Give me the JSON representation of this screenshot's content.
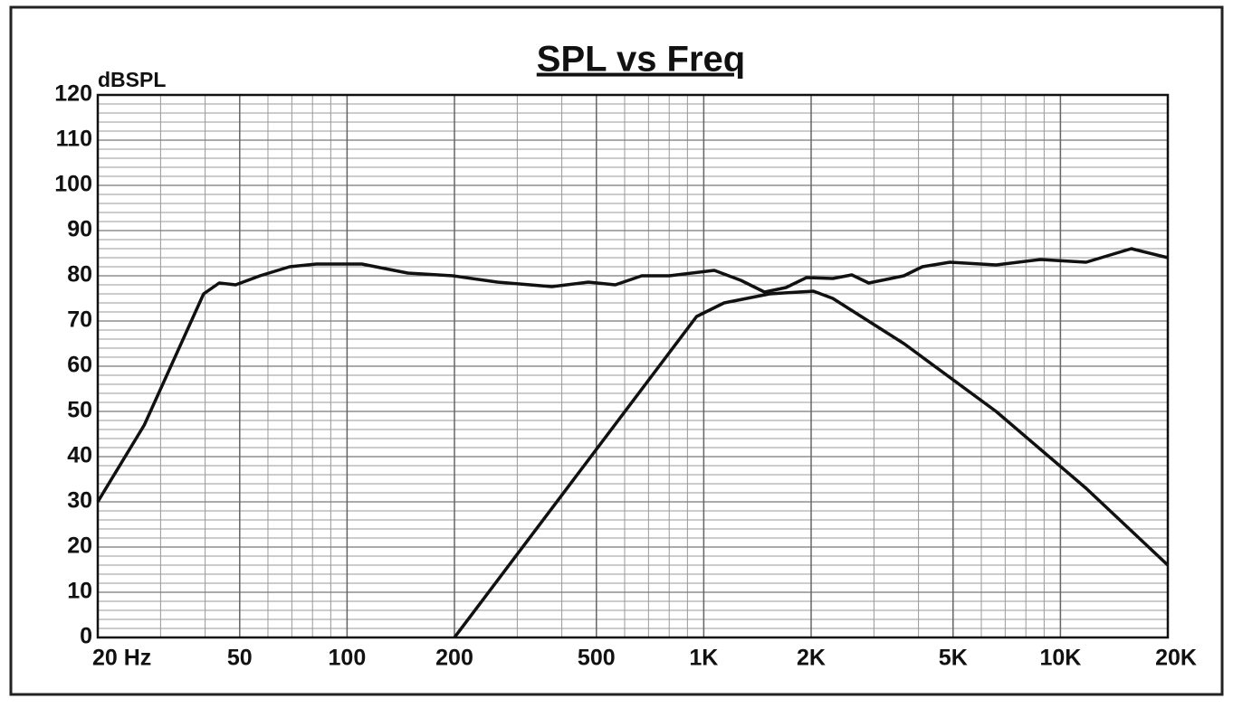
{
  "chart_data": {
    "type": "line",
    "title": "SPL vs Freq",
    "y_label": "dBSPL",
    "log_x": true,
    "grid": true,
    "color": "#111111",
    "xlim": [
      20,
      20000
    ],
    "ylim": [
      0,
      120
    ],
    "xticks": [
      {
        "value": 20,
        "label": "20 Hz"
      },
      50,
      100,
      200,
      500,
      {
        "value": 1000,
        "label": "1K"
      },
      {
        "value": 2000,
        "label": "2K"
      },
      {
        "value": 5000,
        "label": "5K"
      },
      {
        "value": 10000,
        "label": "10K"
      },
      {
        "value": 20000,
        "label": "20K"
      }
    ],
    "yticks": [
      0,
      10,
      20,
      30,
      40,
      50,
      60,
      70,
      80,
      90,
      100,
      110,
      120
    ],
    "series": [
      {
        "color": "#111111",
        "x": [
          20,
          27,
          39.6,
          43.8,
          48.7,
          57,
          69,
          82,
          110,
          148,
          198,
          264,
          375,
          475,
          565,
          670,
          800,
          1070,
          1270,
          1480,
          1700,
          1940,
          2300,
          2600,
          2900,
          3640,
          4100,
          4900,
          6600,
          8800,
          11800,
          15800,
          20000
        ],
        "values": [
          30,
          47,
          76,
          78.4,
          78,
          80,
          82,
          82.6,
          82.6,
          80.6,
          80,
          78.6,
          77.6,
          78.6,
          78,
          80,
          80,
          81.2,
          79,
          76.4,
          77.4,
          79.6,
          79.4,
          80.2,
          78.4,
          80,
          82,
          83,
          82.4,
          83.6,
          83,
          86,
          84
        ]
      },
      {
        "color": "#111111",
        "x": [
          200,
          955,
          1140,
          1530,
          2030,
          2300,
          3640,
          6600,
          11800,
          20000
        ],
        "values": [
          0,
          71,
          74,
          76,
          76.6,
          75,
          65,
          50,
          33,
          16
        ]
      }
    ]
  }
}
